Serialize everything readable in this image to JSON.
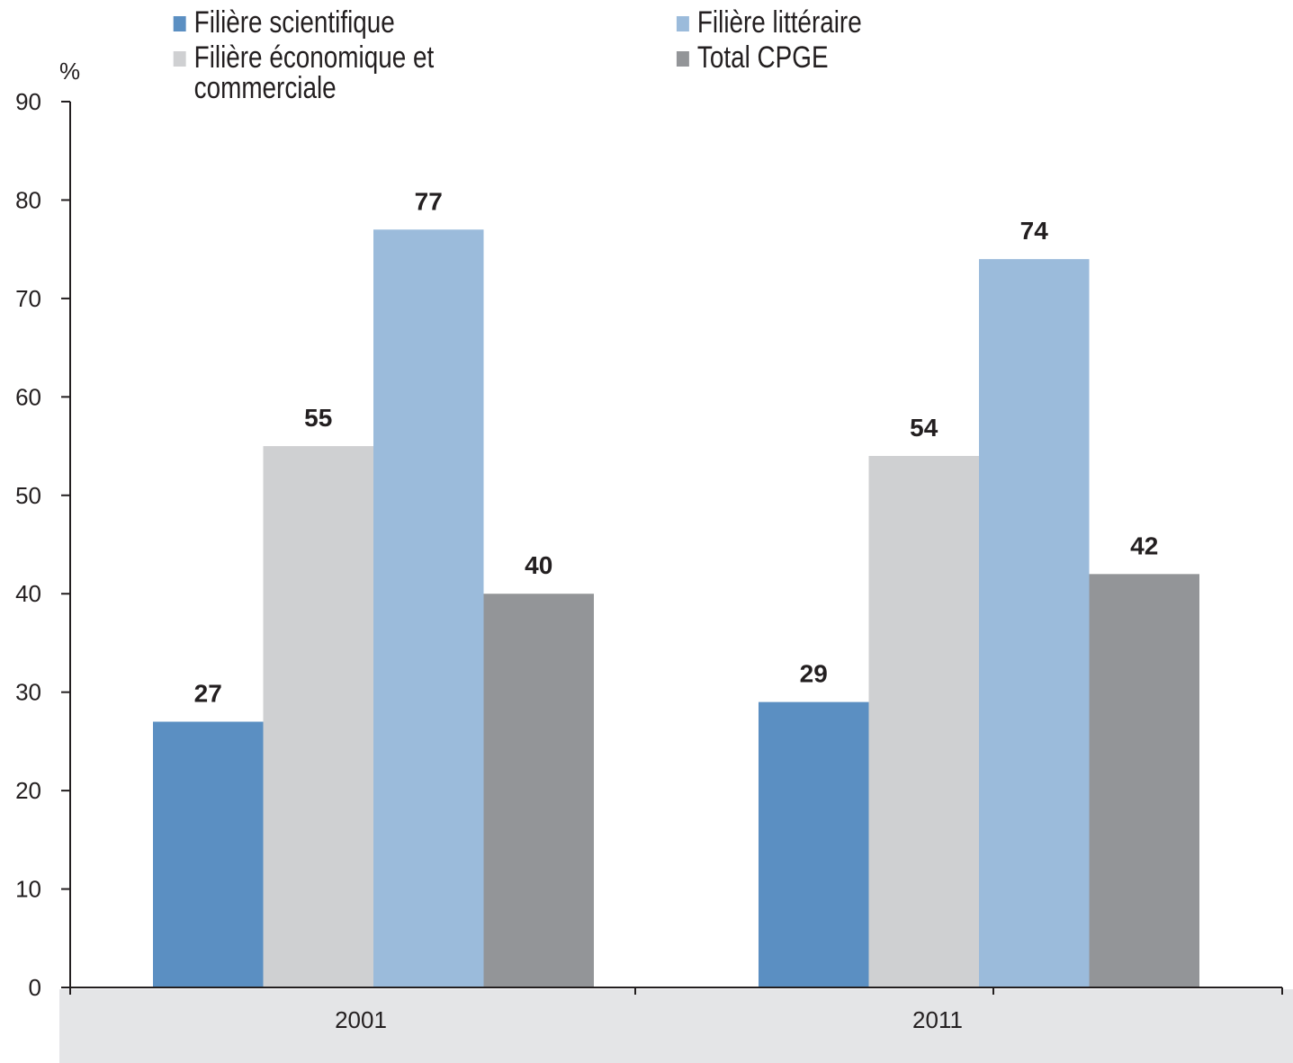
{
  "chart_data": {
    "type": "bar",
    "ylabel": "%",
    "xlabel": "",
    "ylim": [
      0,
      90
    ],
    "yticks": [
      0,
      10,
      20,
      30,
      40,
      50,
      60,
      70,
      80,
      90
    ],
    "categories": [
      "2001",
      "2011"
    ],
    "series": [
      {
        "name": "Filière scientifique",
        "values": [
          27,
          29
        ],
        "labels": [
          "27",
          "29"
        ],
        "color": "#5b8fc2"
      },
      {
        "name": "Filière économique et\ncommerciale",
        "values": [
          55,
          54
        ],
        "labels": [
          "55",
          "54"
        ],
        "color": "#cfd0d2"
      },
      {
        "name": "Filière littéraire",
        "values": [
          77,
          74
        ],
        "labels": [
          "77",
          "74"
        ],
        "color": "#9bbbdb"
      },
      {
        "name": "Total CPGE",
        "values": [
          40,
          42
        ],
        "labels": [
          "40",
          "42"
        ],
        "color": "#939598"
      }
    ],
    "grid": false,
    "legend_position": "top"
  }
}
